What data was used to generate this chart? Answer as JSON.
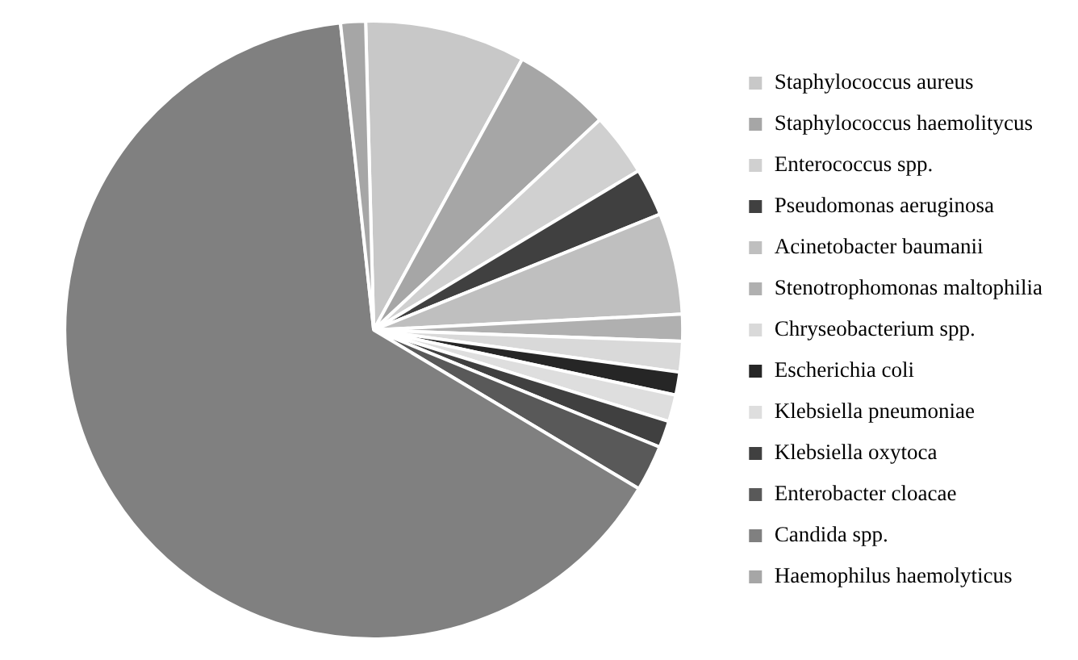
{
  "chart_data": {
    "type": "pie",
    "categories": [
      "Staphylococcus aureus",
      "Staphylococcus haemolitycus",
      "Enterococcus spp.",
      "Pseudomonas aeruginosa",
      "Acinetobacter baumanii",
      "Stenotrophomonas maltophilia",
      "Chryseobacterium spp.",
      "Escherichia coli",
      "Klebsiella pneumoniae",
      "Klebsiella oxytoca",
      "Enterobacter cloacae",
      "Candida spp.",
      "Haemophilus haemolyticus"
    ],
    "values": [
      8.4,
      5.1,
      3.3,
      2.5,
      5.3,
      1.4,
      1.6,
      1.2,
      1.4,
      1.4,
      2.4,
      64.7,
      1.3
    ],
    "colors": [
      "#c8c8c8",
      "#a6a6a6",
      "#d0d0d0",
      "#404040",
      "#bfbfbf",
      "#b0b0b0",
      "#d9d9d9",
      "#262626",
      "#dedede",
      "#404040",
      "#595959",
      "#808080",
      "#a6a6a6"
    ],
    "legend": "right"
  }
}
